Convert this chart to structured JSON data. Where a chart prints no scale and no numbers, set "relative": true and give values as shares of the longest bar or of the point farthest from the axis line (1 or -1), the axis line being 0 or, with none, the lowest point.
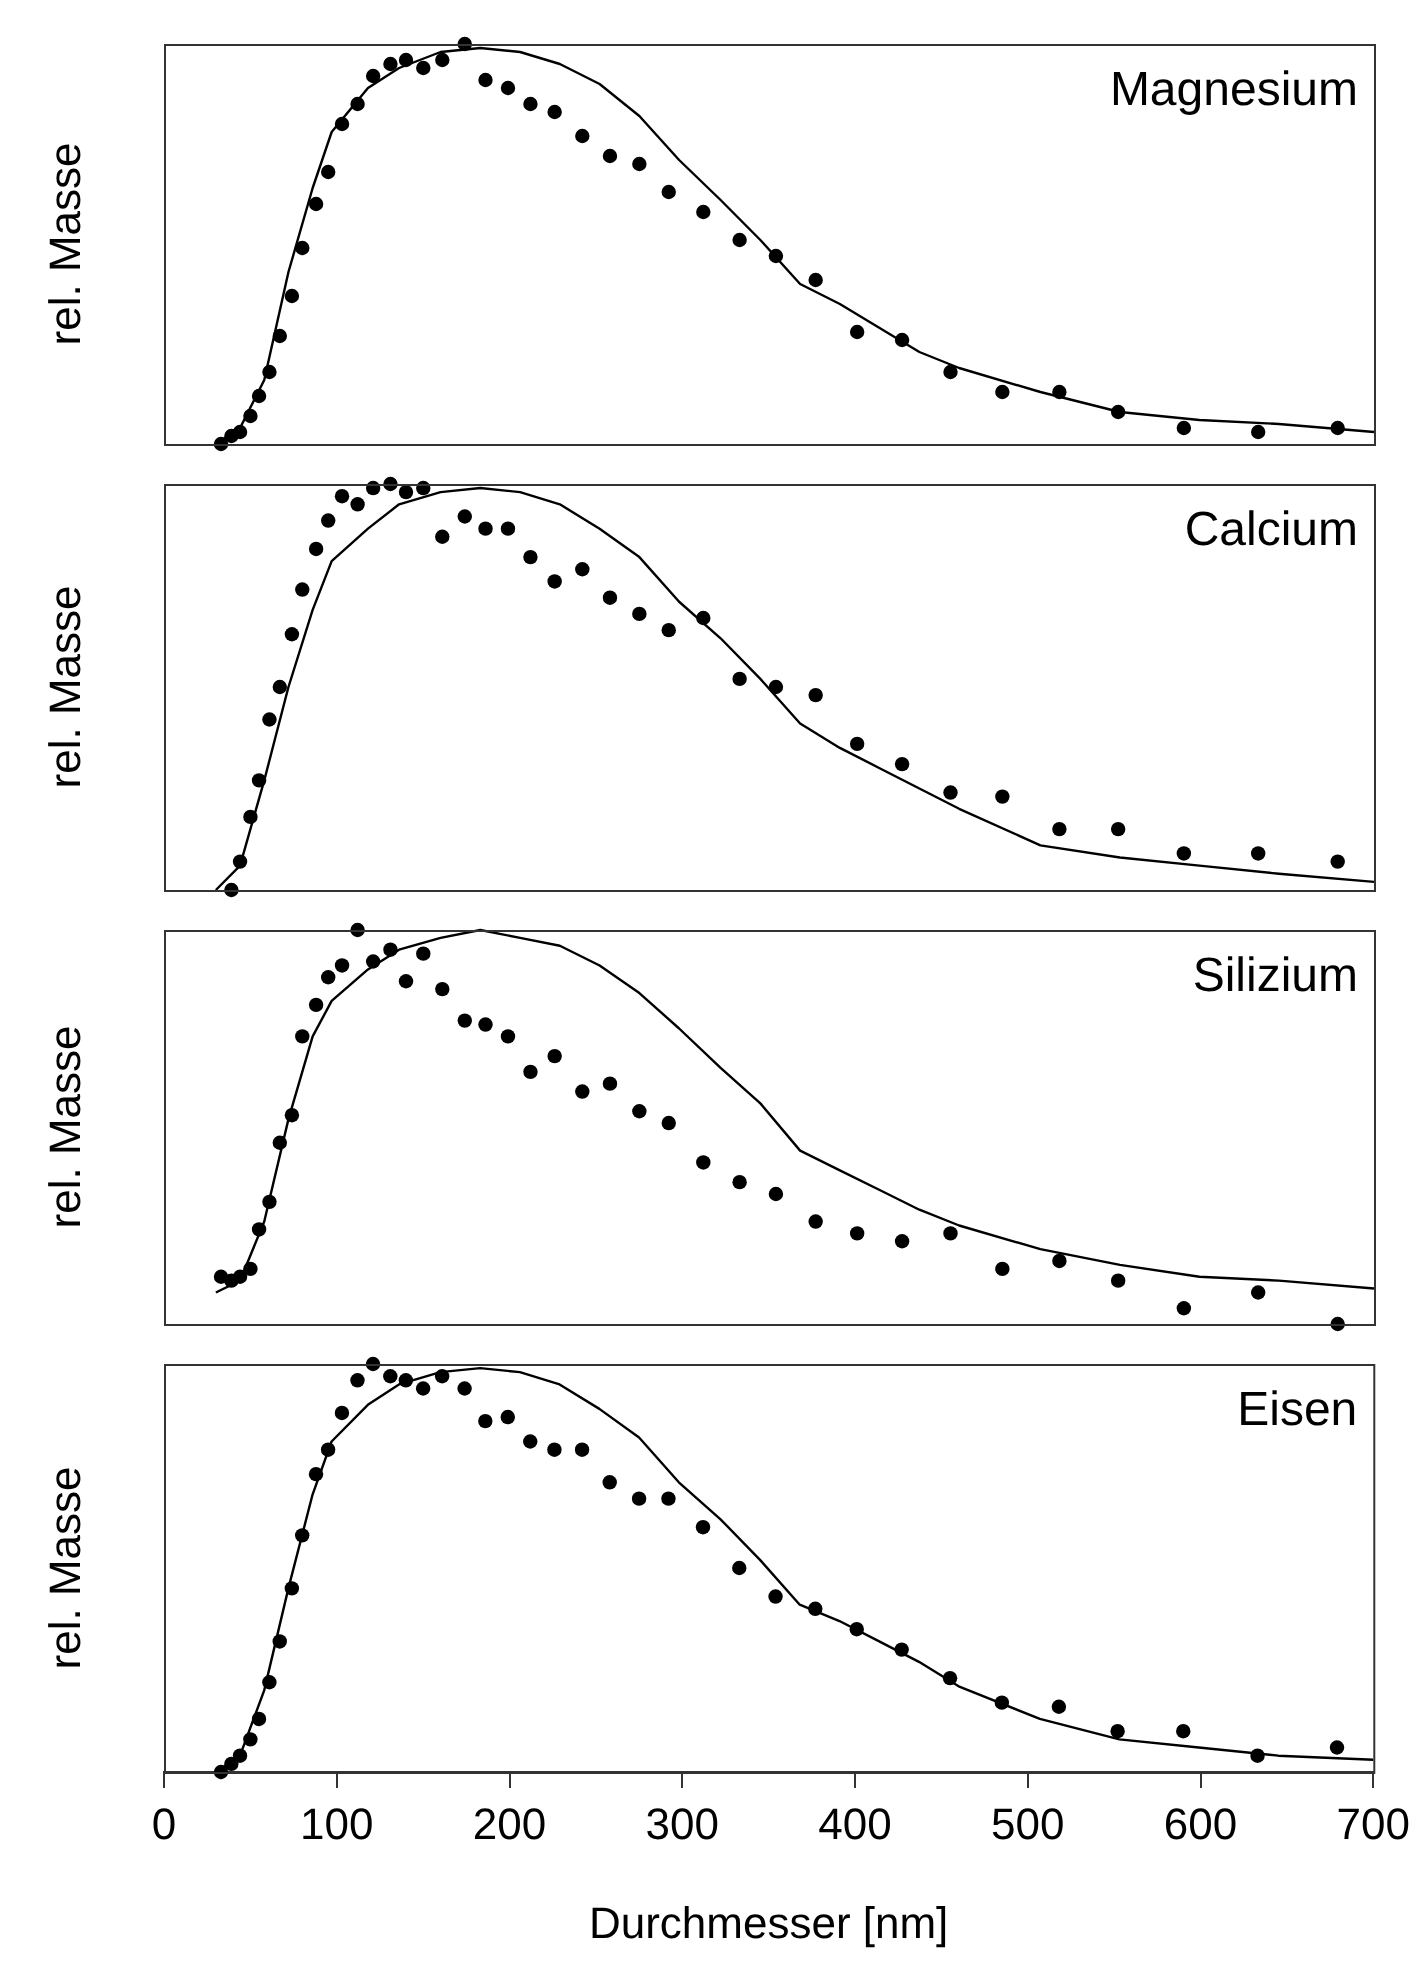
{
  "chart_data": [
    {
      "type": "line",
      "title": "Magnesium",
      "ylabel": "rel. Masse",
      "relative": true,
      "xlim": [
        0,
        700
      ],
      "xticks": [
        0,
        100,
        200,
        300,
        400,
        500,
        600,
        700
      ],
      "tick_labels": false,
      "grid": false,
      "legend": false,
      "marker": "circle",
      "series": [
        {
          "type": "scatter",
          "color": "#000000",
          "x": [
            33,
            39,
            44,
            50,
            55,
            61,
            67,
            74,
            80,
            88,
            95,
            103,
            112,
            121,
            131,
            140,
            150,
            161,
            174,
            186,
            199,
            212,
            226,
            242,
            258,
            275,
            292,
            312,
            333,
            354,
            377,
            401,
            427,
            455,
            485,
            518,
            552,
            590,
            633,
            679
          ],
          "values": [
            0.0,
            0.02,
            0.03,
            0.07,
            0.12,
            0.18,
            0.27,
            0.37,
            0.49,
            0.6,
            0.68,
            0.8,
            0.85,
            0.92,
            0.95,
            0.96,
            0.94,
            0.96,
            1.0,
            0.91,
            0.89,
            0.85,
            0.83,
            0.77,
            0.72,
            0.7,
            0.63,
            0.58,
            0.51,
            0.47,
            0.41,
            0.28,
            0.26,
            0.18,
            0.13,
            0.13,
            0.08,
            0.04,
            0.03,
            0.04
          ]
        },
        {
          "type": "line",
          "marker": "none",
          "color": "#000000",
          "x": [
            30,
            44,
            58,
            72,
            86,
            97,
            118,
            136,
            160,
            183,
            206,
            229,
            252,
            275,
            298,
            322,
            345,
            368,
            391,
            414,
            437,
            460,
            507,
            553,
            599,
            645,
            700
          ],
          "values": [
            0.0,
            0.04,
            0.16,
            0.43,
            0.64,
            0.78,
            0.89,
            0.94,
            0.98,
            0.99,
            0.98,
            0.95,
            0.9,
            0.82,
            0.71,
            0.61,
            0.51,
            0.4,
            0.35,
            0.29,
            0.23,
            0.19,
            0.13,
            0.08,
            0.06,
            0.05,
            0.03
          ]
        }
      ]
    },
    {
      "type": "line",
      "title": "Calcium",
      "ylabel": "rel. Masse",
      "relative": true,
      "xlim": [
        0,
        700
      ],
      "xticks": [
        0,
        100,
        200,
        300,
        400,
        500,
        600,
        700
      ],
      "tick_labels": false,
      "grid": false,
      "legend": false,
      "marker": "circle",
      "series": [
        {
          "type": "scatter",
          "color": "#000000",
          "x": [
            39,
            44,
            50,
            55,
            61,
            67,
            74,
            80,
            88,
            95,
            103,
            112,
            121,
            131,
            140,
            150,
            161,
            174,
            186,
            199,
            212,
            226,
            242,
            258,
            275,
            292,
            312,
            333,
            354,
            377,
            401,
            427,
            455,
            485,
            518,
            552,
            590,
            633,
            679
          ],
          "values": [
            0.0,
            0.07,
            0.18,
            0.27,
            0.42,
            0.5,
            0.63,
            0.74,
            0.84,
            0.91,
            0.97,
            0.95,
            0.99,
            1.0,
            0.98,
            0.99,
            0.87,
            0.92,
            0.89,
            0.89,
            0.82,
            0.76,
            0.79,
            0.72,
            0.68,
            0.64,
            0.67,
            0.52,
            0.5,
            0.48,
            0.36,
            0.31,
            0.24,
            0.23,
            0.15,
            0.15,
            0.09,
            0.09,
            0.07
          ]
        },
        {
          "type": "line",
          "marker": "none",
          "color": "#000000",
          "x": [
            30,
            44,
            58,
            72,
            86,
            97,
            118,
            136,
            160,
            183,
            206,
            229,
            252,
            275,
            298,
            322,
            345,
            368,
            391,
            414,
            437,
            460,
            507,
            553,
            599,
            645,
            700
          ],
          "values": [
            0.0,
            0.06,
            0.27,
            0.5,
            0.69,
            0.81,
            0.89,
            0.95,
            0.98,
            0.99,
            0.98,
            0.95,
            0.89,
            0.82,
            0.71,
            0.62,
            0.52,
            0.41,
            0.35,
            0.3,
            0.25,
            0.2,
            0.11,
            0.08,
            0.06,
            0.04,
            0.02
          ]
        }
      ]
    },
    {
      "type": "line",
      "title": "Silizium",
      "ylabel": "rel. Masse",
      "relative": true,
      "xlim": [
        0,
        700
      ],
      "xticks": [
        0,
        100,
        200,
        300,
        400,
        500,
        600,
        700
      ],
      "tick_labels": false,
      "grid": false,
      "legend": false,
      "marker": "circle",
      "series": [
        {
          "type": "scatter",
          "color": "#000000",
          "x": [
            33,
            39,
            44,
            50,
            55,
            61,
            67,
            74,
            80,
            88,
            95,
            103,
            112,
            121,
            131,
            140,
            150,
            161,
            174,
            186,
            199,
            212,
            226,
            242,
            258,
            275,
            292,
            312,
            333,
            354,
            377,
            401,
            427,
            455,
            485,
            518,
            552,
            590,
            633,
            679
          ],
          "values": [
            0.12,
            0.11,
            0.12,
            0.14,
            0.24,
            0.31,
            0.46,
            0.53,
            0.73,
            0.81,
            0.88,
            0.91,
            1.0,
            0.92,
            0.95,
            0.87,
            0.94,
            0.85,
            0.77,
            0.76,
            0.73,
            0.64,
            0.68,
            0.59,
            0.61,
            0.54,
            0.51,
            0.41,
            0.36,
            0.33,
            0.26,
            0.23,
            0.21,
            0.23,
            0.14,
            0.16,
            0.11,
            0.04,
            0.08,
            0.0
          ]
        },
        {
          "type": "line",
          "marker": "none",
          "color": "#000000",
          "x": [
            30,
            44,
            58,
            72,
            86,
            97,
            118,
            136,
            160,
            183,
            206,
            229,
            252,
            275,
            298,
            322,
            345,
            368,
            391,
            414,
            437,
            460,
            507,
            553,
            599,
            645,
            700
          ],
          "values": [
            0.08,
            0.11,
            0.26,
            0.52,
            0.73,
            0.82,
            0.9,
            0.95,
            0.98,
            1.0,
            0.98,
            0.96,
            0.91,
            0.84,
            0.75,
            0.65,
            0.56,
            0.44,
            0.39,
            0.34,
            0.29,
            0.25,
            0.19,
            0.15,
            0.12,
            0.11,
            0.09
          ]
        }
      ]
    },
    {
      "type": "line",
      "title": "Eisen",
      "ylabel": "rel. Masse",
      "xlabel": "Durchmesser [nm]",
      "relative": true,
      "xlim": [
        0,
        700
      ],
      "xticks": [
        0,
        100,
        200,
        300,
        400,
        500,
        600,
        700
      ],
      "tick_labels": "x",
      "grid": false,
      "legend": false,
      "marker": "circle",
      "series": [
        {
          "type": "scatter",
          "color": "#000000",
          "x": [
            33,
            39,
            44,
            50,
            55,
            61,
            67,
            74,
            80,
            88,
            95,
            103,
            112,
            121,
            131,
            140,
            150,
            161,
            174,
            186,
            199,
            212,
            226,
            242,
            258,
            275,
            292,
            312,
            333,
            354,
            377,
            401,
            427,
            455,
            485,
            518,
            552,
            590,
            633,
            679
          ],
          "values": [
            0.0,
            0.02,
            0.04,
            0.08,
            0.13,
            0.22,
            0.32,
            0.45,
            0.58,
            0.73,
            0.79,
            0.88,
            0.96,
            1.0,
            0.97,
            0.96,
            0.94,
            0.97,
            0.94,
            0.86,
            0.87,
            0.81,
            0.79,
            0.79,
            0.71,
            0.67,
            0.67,
            0.6,
            0.5,
            0.43,
            0.4,
            0.35,
            0.3,
            0.23,
            0.17,
            0.16,
            0.1,
            0.1,
            0.04,
            0.06
          ]
        },
        {
          "type": "line",
          "marker": "none",
          "color": "#000000",
          "x": [
            30,
            44,
            58,
            72,
            86,
            97,
            118,
            136,
            160,
            183,
            206,
            229,
            252,
            275,
            298,
            322,
            345,
            368,
            391,
            414,
            437,
            460,
            507,
            553,
            599,
            645,
            700
          ],
          "values": [
            0.0,
            0.04,
            0.2,
            0.45,
            0.68,
            0.81,
            0.9,
            0.95,
            0.98,
            0.99,
            0.98,
            0.95,
            0.89,
            0.82,
            0.71,
            0.62,
            0.52,
            0.41,
            0.37,
            0.32,
            0.27,
            0.21,
            0.13,
            0.08,
            0.06,
            0.04,
            0.03
          ]
        }
      ]
    }
  ]
}
